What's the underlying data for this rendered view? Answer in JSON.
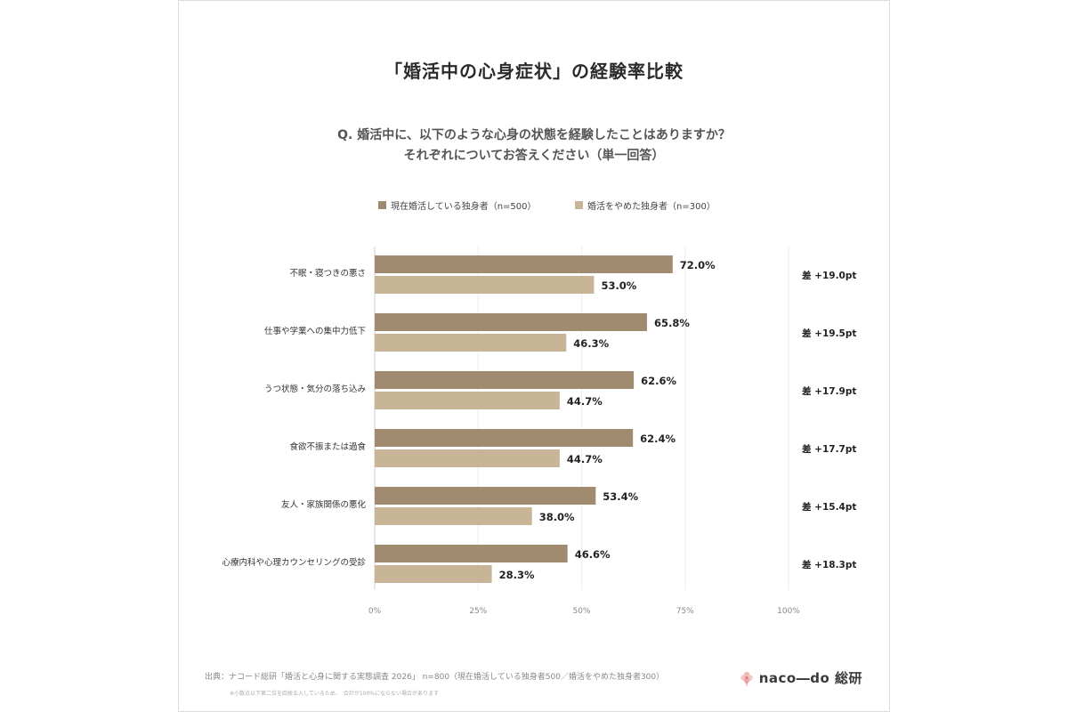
{
  "title": "「婚活中の心身症状」の経験率比較",
  "question": {
    "line1": "Q. 婚活中に、以下のような心身の状態を経験したことはありますか？",
    "line2": "それぞれについてお答えください（単一回答）"
  },
  "colors": {
    "current": "#a08a70",
    "quit": "#c8b496",
    "grid": "#eeeeee",
    "axis": "#cfcfcf"
  },
  "chart_data": {
    "type": "bar",
    "orientation": "horizontal",
    "categories": [
      "不眠・寝つきの悪さ",
      "仕事や学業への集中力低下",
      "うつ状態・気分の落ち込み",
      "食欲不振または過食",
      "友人・家族関係の悪化",
      "心療内科や心理カウンセリングの受診"
    ],
    "series": [
      {
        "name": "現在婚活している独身者（n=500）",
        "values": [
          72.0,
          65.8,
          62.6,
          62.4,
          53.4,
          46.6
        ],
        "labels": [
          "72.0%",
          "65.8%",
          "62.6%",
          "62.4%",
          "53.4%",
          "46.6%"
        ]
      },
      {
        "name": "婚活をやめた独身者（n=300）",
        "values": [
          53.0,
          46.3,
          44.7,
          44.7,
          38.0,
          28.3
        ],
        "labels": [
          "53.0%",
          "46.3%",
          "44.7%",
          "44.7%",
          "38.0%",
          "28.3%"
        ]
      }
    ],
    "differences": [
      "差 +19.0pt",
      "差 +19.5pt",
      "差 +17.9pt",
      "差 +17.7pt",
      "差 +15.4pt",
      "差 +18.3pt"
    ],
    "xlim": [
      0,
      100
    ],
    "x_ticks": [
      0,
      25,
      50,
      75,
      100
    ],
    "x_tick_labels": [
      "0%",
      "25%",
      "50%",
      "75%",
      "100%"
    ],
    "grid": true,
    "legend_position": "top"
  },
  "footer": {
    "source": "出典：ナコード総研「婚活と心身に関する実態調査 2026」 n=800（現在婚活している独身者500／婚活をやめた独身者300）",
    "note": "※小数点以下第二位を四捨五入しているため、　合計が100%にならない場合があります",
    "logo_text": "naco―do 総研",
    "logo_icon": "flower-logo-icon"
  }
}
